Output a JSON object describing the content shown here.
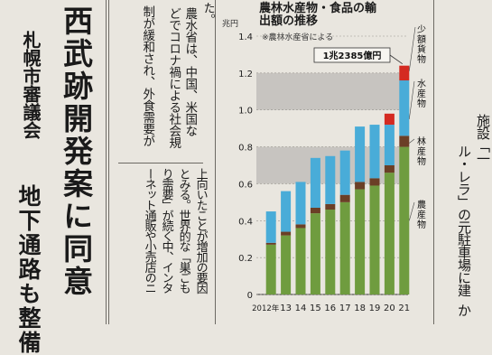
{
  "article_left": {
    "headline": "西武跡開発案に同意",
    "subhead_top": "札幌市審議会",
    "subhead_bottom": "地下通路も整備"
  },
  "article_right": {
    "col1": "ル・レラ」の元駐車場に建",
    "col1_tail": "か",
    "col2": "施設「一"
  },
  "body_text": {
    "top_tail": "た。",
    "col1": "農水省は、中国、米国な",
    "col2": "どでコロナ禍による社会規",
    "col3": "制が緩和され、外食需要が",
    "col4": "上向いたことが増加の要因",
    "col5": "とみる。世界的な「巣ごも",
    "col6": "り需要」が続く中、インタ",
    "col7": "ーネット通販や小売店のニ"
  },
  "chart_data": {
    "type": "bar",
    "stacked": true,
    "title": "農林水産物・食品の輸出額の推移",
    "source": "※農林水産省による",
    "y_unit_label": "兆円",
    "ylim": [
      0,
      1.4
    ],
    "y_ticks": [
      "0",
      "0.2",
      "0.4",
      "0.6",
      "0.8",
      "1.0",
      "1.2",
      "1.4"
    ],
    "x_prefix": "2012年",
    "categories": [
      "12",
      "13",
      "14",
      "15",
      "16",
      "17",
      "18",
      "19",
      "20",
      "21"
    ],
    "annotation": "1兆2385億円",
    "series": [
      {
        "name": "農産物",
        "color": "#6f9c3f",
        "values": [
          0.27,
          0.32,
          0.36,
          0.44,
          0.46,
          0.5,
          0.57,
          0.59,
          0.66,
          0.8
        ]
      },
      {
        "name": "林産物",
        "color": "#6b3f26",
        "values": [
          0.01,
          0.02,
          0.02,
          0.03,
          0.03,
          0.04,
          0.04,
          0.04,
          0.04,
          0.06
        ]
      },
      {
        "name": "水産物",
        "color": "#49acd8",
        "values": [
          0.17,
          0.22,
          0.23,
          0.27,
          0.26,
          0.24,
          0.3,
          0.29,
          0.22,
          0.3
        ]
      },
      {
        "name": "少額貨物",
        "color": "#d42a21",
        "values": [
          0,
          0,
          0,
          0,
          0,
          0,
          0,
          0,
          0.06,
          0.08
        ]
      }
    ],
    "bands": [
      [
        1.0,
        1.2
      ],
      [
        0.6,
        0.8
      ]
    ]
  }
}
